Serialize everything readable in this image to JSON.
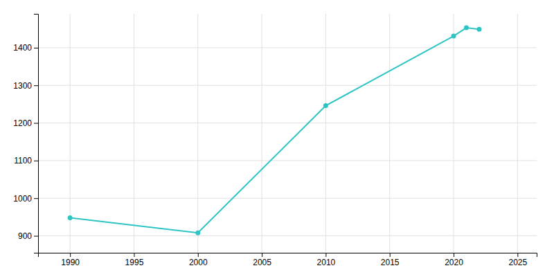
{
  "chart_data": {
    "type": "line",
    "x": [
      1990,
      2000,
      2010,
      2020,
      2021,
      2022
    ],
    "values": [
      948,
      908,
      1246,
      1431,
      1453,
      1449
    ],
    "color": "#2ec4c4",
    "marker": "circle",
    "xlim": [
      1987.5,
      2026.5
    ],
    "ylim": [
      855,
      1490
    ],
    "xticks": [
      1990,
      1995,
      2000,
      2005,
      2010,
      2015,
      2020,
      2025
    ],
    "yticks": [
      900,
      1000,
      1100,
      1200,
      1300,
      1400
    ],
    "grid": true
  }
}
